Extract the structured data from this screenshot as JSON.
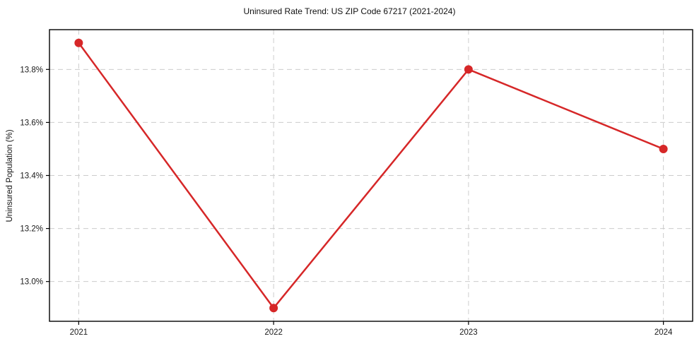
{
  "chart_data": {
    "type": "line",
    "title": "Uninsured Rate Trend: US ZIP Code 67217 (2021-2024)",
    "ylabel": "Uninsured Population (%)",
    "xlabel": "",
    "x": [
      2021,
      2022,
      2023,
      2024
    ],
    "y": [
      13.9,
      12.9,
      13.8,
      13.5
    ],
    "xtick_labels": [
      "2021",
      "2022",
      "2023",
      "2024"
    ],
    "ytick_values": [
      13.0,
      13.2,
      13.4,
      13.6,
      13.8
    ],
    "ytick_labels": [
      "13.0%",
      "13.2%",
      "13.4%",
      "13.6%",
      "13.8%"
    ],
    "ylim": [
      12.85,
      13.95
    ],
    "xlim_index": [
      -0.15,
      3.15
    ],
    "grid": true,
    "grid_style": "dashed",
    "legend_position": "none",
    "line_color": "#d62728",
    "marker": "circle",
    "grid_color": "#cccccc",
    "axis_color": "#000000",
    "tick_label_color": "#1a1a1a",
    "background_color": "#ffffff"
  }
}
